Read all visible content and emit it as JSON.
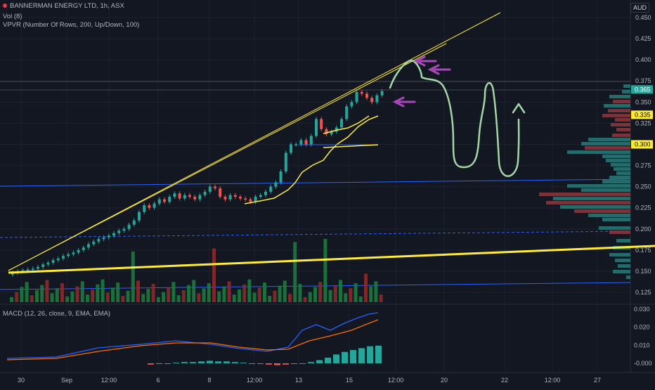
{
  "header": {
    "title": "BANNERMAN ENERGY LTD, 1h, ASX",
    "vol_legend": "Vol (8)",
    "vpvr_legend": "VPVR (Number Of Rows, 200, Up/Down, 100)",
    "macd_legend": "MACD (12, 26, close, 9, EMA, EMA)",
    "currency": "AUD"
  },
  "price_axis": {
    "ticks": [
      "0.450",
      "0.425",
      "0.400",
      "0.375",
      "0.350",
      "0.325",
      "0.300",
      "0.275",
      "0.250",
      "0.225",
      "0.200",
      "0.175",
      "0.150",
      "0.125"
    ],
    "labels": [
      {
        "text": "0.365",
        "color": "#26a69a",
        "text_color": "#ffffff",
        "value": 0.365
      },
      {
        "text": "0.335",
        "color": "#ffeb3b",
        "text_color": "#000000",
        "value": 0.335
      },
      {
        "text": "0.300",
        "color": "#ffeb3b",
        "text_color": "#000000",
        "value": 0.3
      }
    ]
  },
  "macd_axis": {
    "ticks": [
      "0.030",
      "0.020",
      "0.010",
      "-0.000"
    ]
  },
  "time_axis": {
    "ticks": [
      "30",
      "Sep",
      "12:00",
      "6",
      "8",
      "12:00",
      "13",
      "15",
      "12:00",
      "20",
      "22",
      "12:00",
      "27"
    ]
  },
  "colors": {
    "background": "#131722",
    "up": "#26a69a",
    "down": "#ef5350",
    "grid": "#1e222d",
    "trendline": "#ffeb3b",
    "hline": "#2962ff",
    "annotation": "#a5d6a7",
    "arrow": "#ab47bc"
  },
  "chart_data": {
    "type": "candlestick",
    "title": "BANNERMAN ENERGY LTD, 1h, ASX",
    "ylim": [
      0.12,
      0.46
    ],
    "closes": [
      0.148,
      0.15,
      0.151,
      0.152,
      0.153,
      0.155,
      0.158,
      0.16,
      0.163,
      0.165,
      0.168,
      0.17,
      0.172,
      0.175,
      0.178,
      0.182,
      0.185,
      0.188,
      0.19,
      0.192,
      0.195,
      0.198,
      0.2,
      0.205,
      0.21,
      0.22,
      0.228,
      0.225,
      0.23,
      0.235,
      0.232,
      0.238,
      0.242,
      0.236,
      0.24,
      0.238,
      0.235,
      0.24,
      0.244,
      0.25,
      0.248,
      0.238,
      0.235,
      0.24,
      0.238,
      0.236,
      0.235,
      0.232,
      0.238,
      0.24,
      0.244,
      0.25,
      0.255,
      0.268,
      0.29,
      0.3,
      0.3,
      0.305,
      0.3,
      0.31,
      0.33,
      0.318,
      0.312,
      0.315,
      0.32,
      0.33,
      0.345,
      0.35,
      0.362,
      0.36,
      0.355,
      0.35,
      0.358,
      0.363
    ],
    "macd_values": [
      -0.002,
      -0.001,
      0.0,
      0.001,
      0.002,
      0.002,
      0.003,
      0.004,
      0.003,
      0.003,
      0.002,
      0.001,
      0.0,
      -0.001,
      -0.002,
      -0.003,
      -0.002,
      -0.001,
      0.0,
      0.002,
      0.005,
      0.009,
      0.014,
      0.018,
      0.021,
      0.024,
      0.027,
      0.028
    ]
  }
}
